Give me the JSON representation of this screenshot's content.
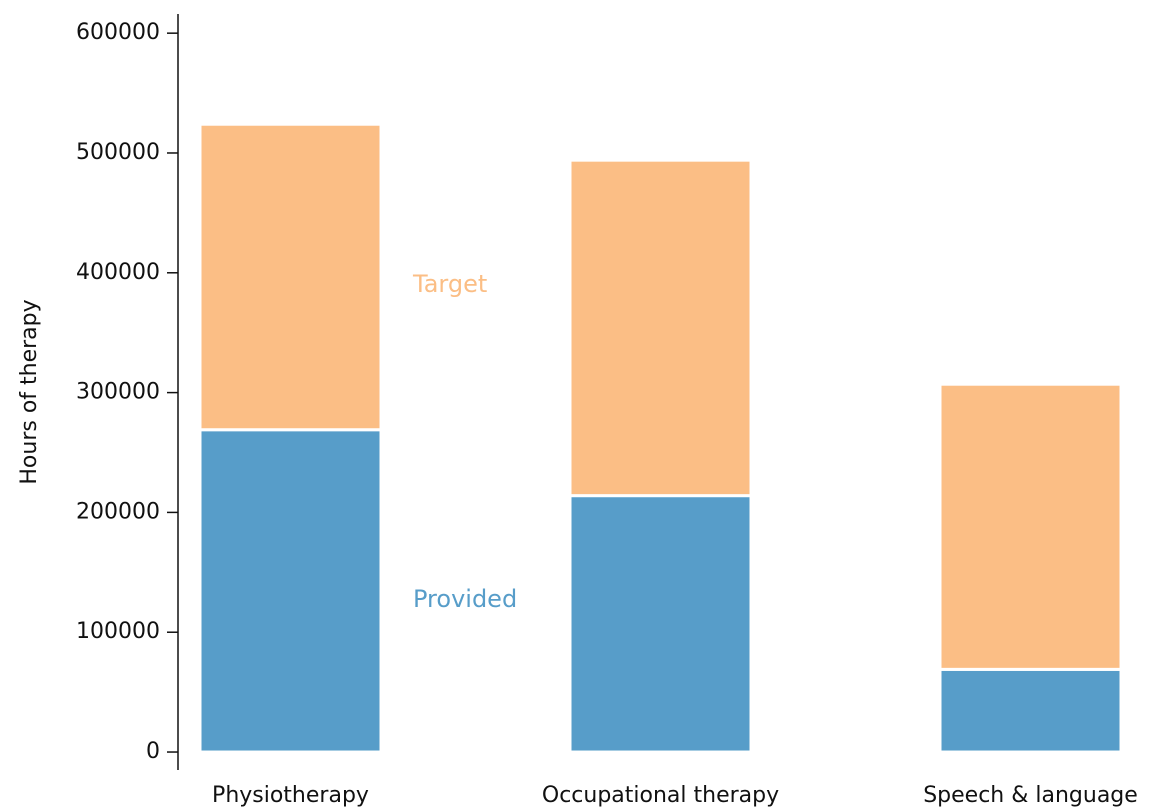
{
  "chart_data": {
    "type": "stacked-bar",
    "y_label": "Hours of therapy",
    "categories": [
      "Physiotherapy",
      "Occupational therapy",
      "Speech & language"
    ],
    "series": [
      {
        "name": "Provided",
        "color": "#579dc9",
        "values": [
          269000,
          214000,
          69000
        ]
      },
      {
        "name": "Target",
        "color": "#fbbe85",
        "values": [
          255000,
          280000,
          238000
        ]
      }
    ],
    "ylim": [
      -15000,
      616000
    ],
    "yticks": [
      0,
      100000,
      200000,
      300000,
      400000,
      500000,
      600000
    ]
  }
}
